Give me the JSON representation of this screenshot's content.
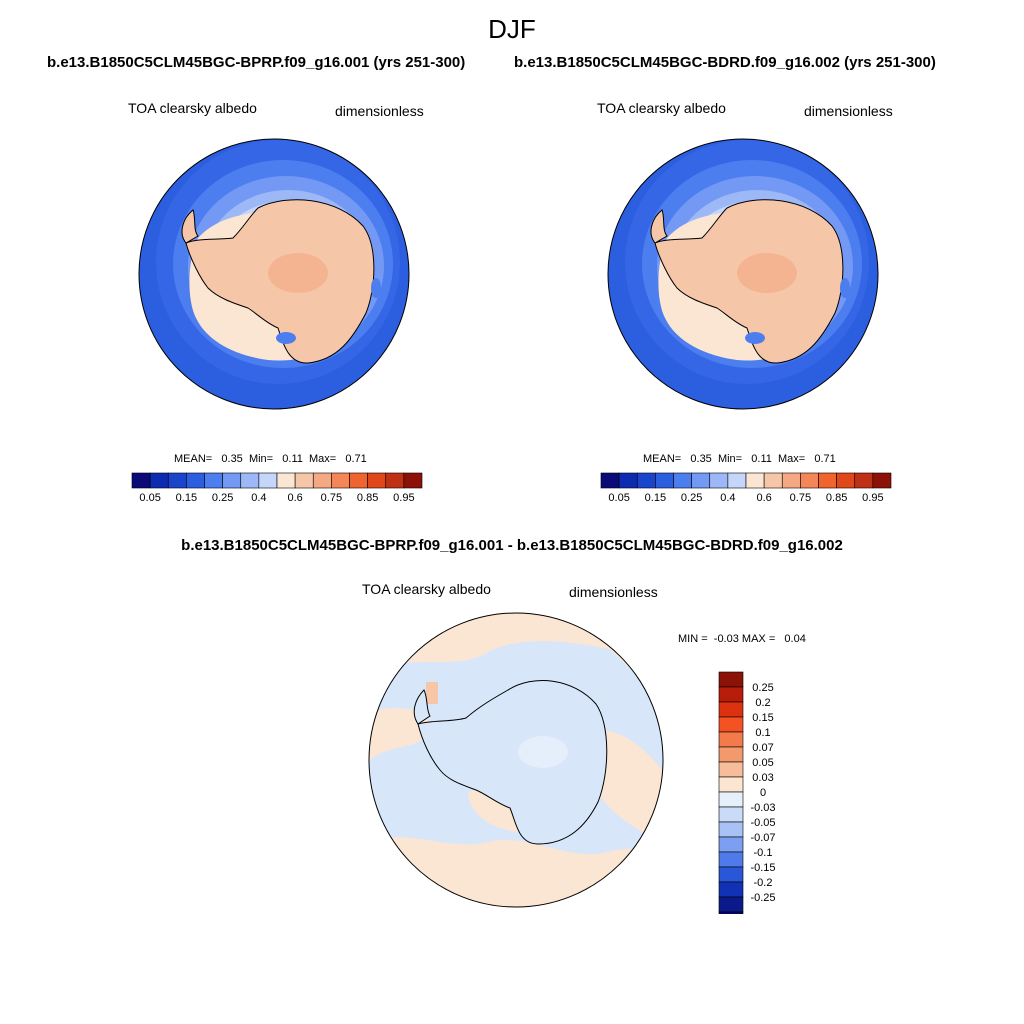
{
  "season": "DJF",
  "case1_title": "b.e13.B1850C5CLM45BGC-BPRP.f09_g16.001 (yrs 251-300)",
  "case2_title": "b.e13.B1850C5CLM45BGC-BDRD.f09_g16.002 (yrs 251-300)",
  "diff_title": "b.e13.B1850C5CLM45BGC-BPRP.f09_g16.001 - b.e13.B1850C5CLM45BGC-BDRD.f09_g16.002",
  "panels": [
    {
      "variable": "TOA clearsky albedo",
      "units": "dimensionless",
      "stats": {
        "mean_label": "MEAN=",
        "mean": "0.35",
        "min_label": "Min=",
        "min": "0.11",
        "max_label": "Max=",
        "max": "0.71"
      }
    },
    {
      "variable": "TOA clearsky albedo",
      "units": "dimensionless",
      "stats": {
        "mean_label": "MEAN=",
        "mean": "0.35",
        "min_label": "Min=",
        "min": "0.11",
        "max_label": "Max=",
        "max": "0.71"
      }
    },
    {
      "variable": "TOA clearsky albedo",
      "units": "dimensionless",
      "stats": {
        "min_label": "MIN =",
        "min": "-0.03",
        "max_label": "MAX =",
        "max": "0.04"
      }
    }
  ],
  "colorbar_main": {
    "colors": [
      "#0a0a78",
      "#0d2bb0",
      "#1a44cc",
      "#2c5fe0",
      "#4c7ef0",
      "#7399f4",
      "#9cb8f7",
      "#c6d6fa",
      "#fbe6d4",
      "#f6c6a9",
      "#f4a883",
      "#f58658",
      "#f0642f",
      "#e0481b",
      "#c03015",
      "#8c1208"
    ],
    "labels": [
      "0.05",
      "0.15",
      "0.25",
      "0.4",
      "0.6",
      "0.75",
      "0.85",
      "0.95"
    ]
  },
  "colorbar_diff": {
    "colors": [
      "#8c1208",
      "#b81c0a",
      "#dc3210",
      "#f55224",
      "#f37a4a",
      "#f39a6c",
      "#f7bd9a",
      "#fce6d2",
      "#e6f0fb",
      "#c9dbf7",
      "#a8c2f5",
      "#7d9ff2",
      "#4f7bea",
      "#2a56d8",
      "#1232b6",
      "#0a1a8a",
      "#05056e"
    ],
    "labels": [
      "0.25",
      "0.2",
      "0.15",
      "0.1",
      "0.07",
      "0.05",
      "0.03",
      "0",
      "-0.03",
      "-0.05",
      "-0.07",
      "-0.1",
      "-0.15",
      "-0.2",
      "-0.25"
    ]
  }
}
